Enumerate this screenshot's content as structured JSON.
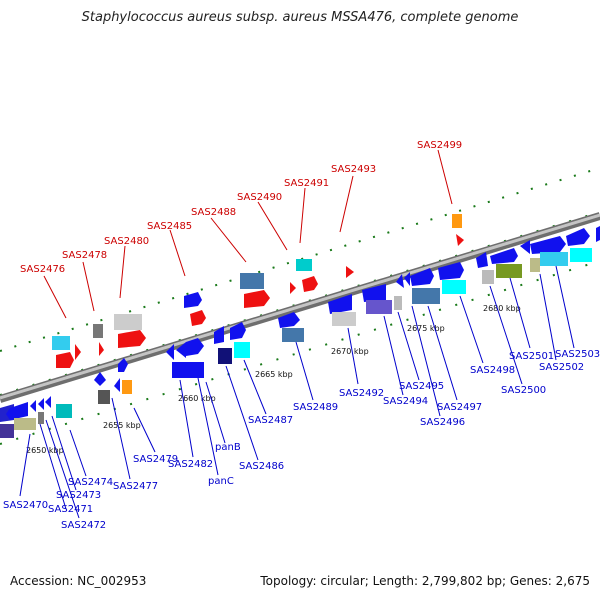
{
  "title": "Staphylococcus aureus subsp. aureus MSSA476, complete genome",
  "accession": "Accession: NC_002953",
  "topology": "Topology: circular; Length: 2,799,802 bp; Genes: 2,675",
  "colors": {
    "forward_label": "#cc0000",
    "reverse_label": "#0000cc",
    "backbone": "#8a8a8a",
    "tick": "#1a7a1a"
  },
  "kbp_ticks": [
    "2650 kbp",
    "2655 kbp",
    "2660 kbp",
    "2665 kbp",
    "2670 kbp",
    "2675 kbp",
    "2680 kbp"
  ],
  "forward_labels": [
    "SAS2476",
    "SAS2478",
    "SAS2480",
    "SAS2485",
    "SAS2488",
    "SAS2490",
    "SAS2491",
    "SAS2493",
    "SAS2499"
  ],
  "reverse_labels": [
    "SAS2470",
    "SAS2471",
    "SAS2472",
    "SAS2473",
    "SAS2474",
    "SAS2477",
    "SAS2479",
    "SAS2482",
    "panB",
    "panC",
    "SAS2486",
    "SAS2487",
    "SAS2489",
    "SAS2492",
    "SAS2494",
    "SAS2495",
    "SAS2496",
    "SAS2497",
    "SAS2498",
    "SAS2500",
    "SAS2501",
    "SAS2502",
    "SAS2503"
  ]
}
